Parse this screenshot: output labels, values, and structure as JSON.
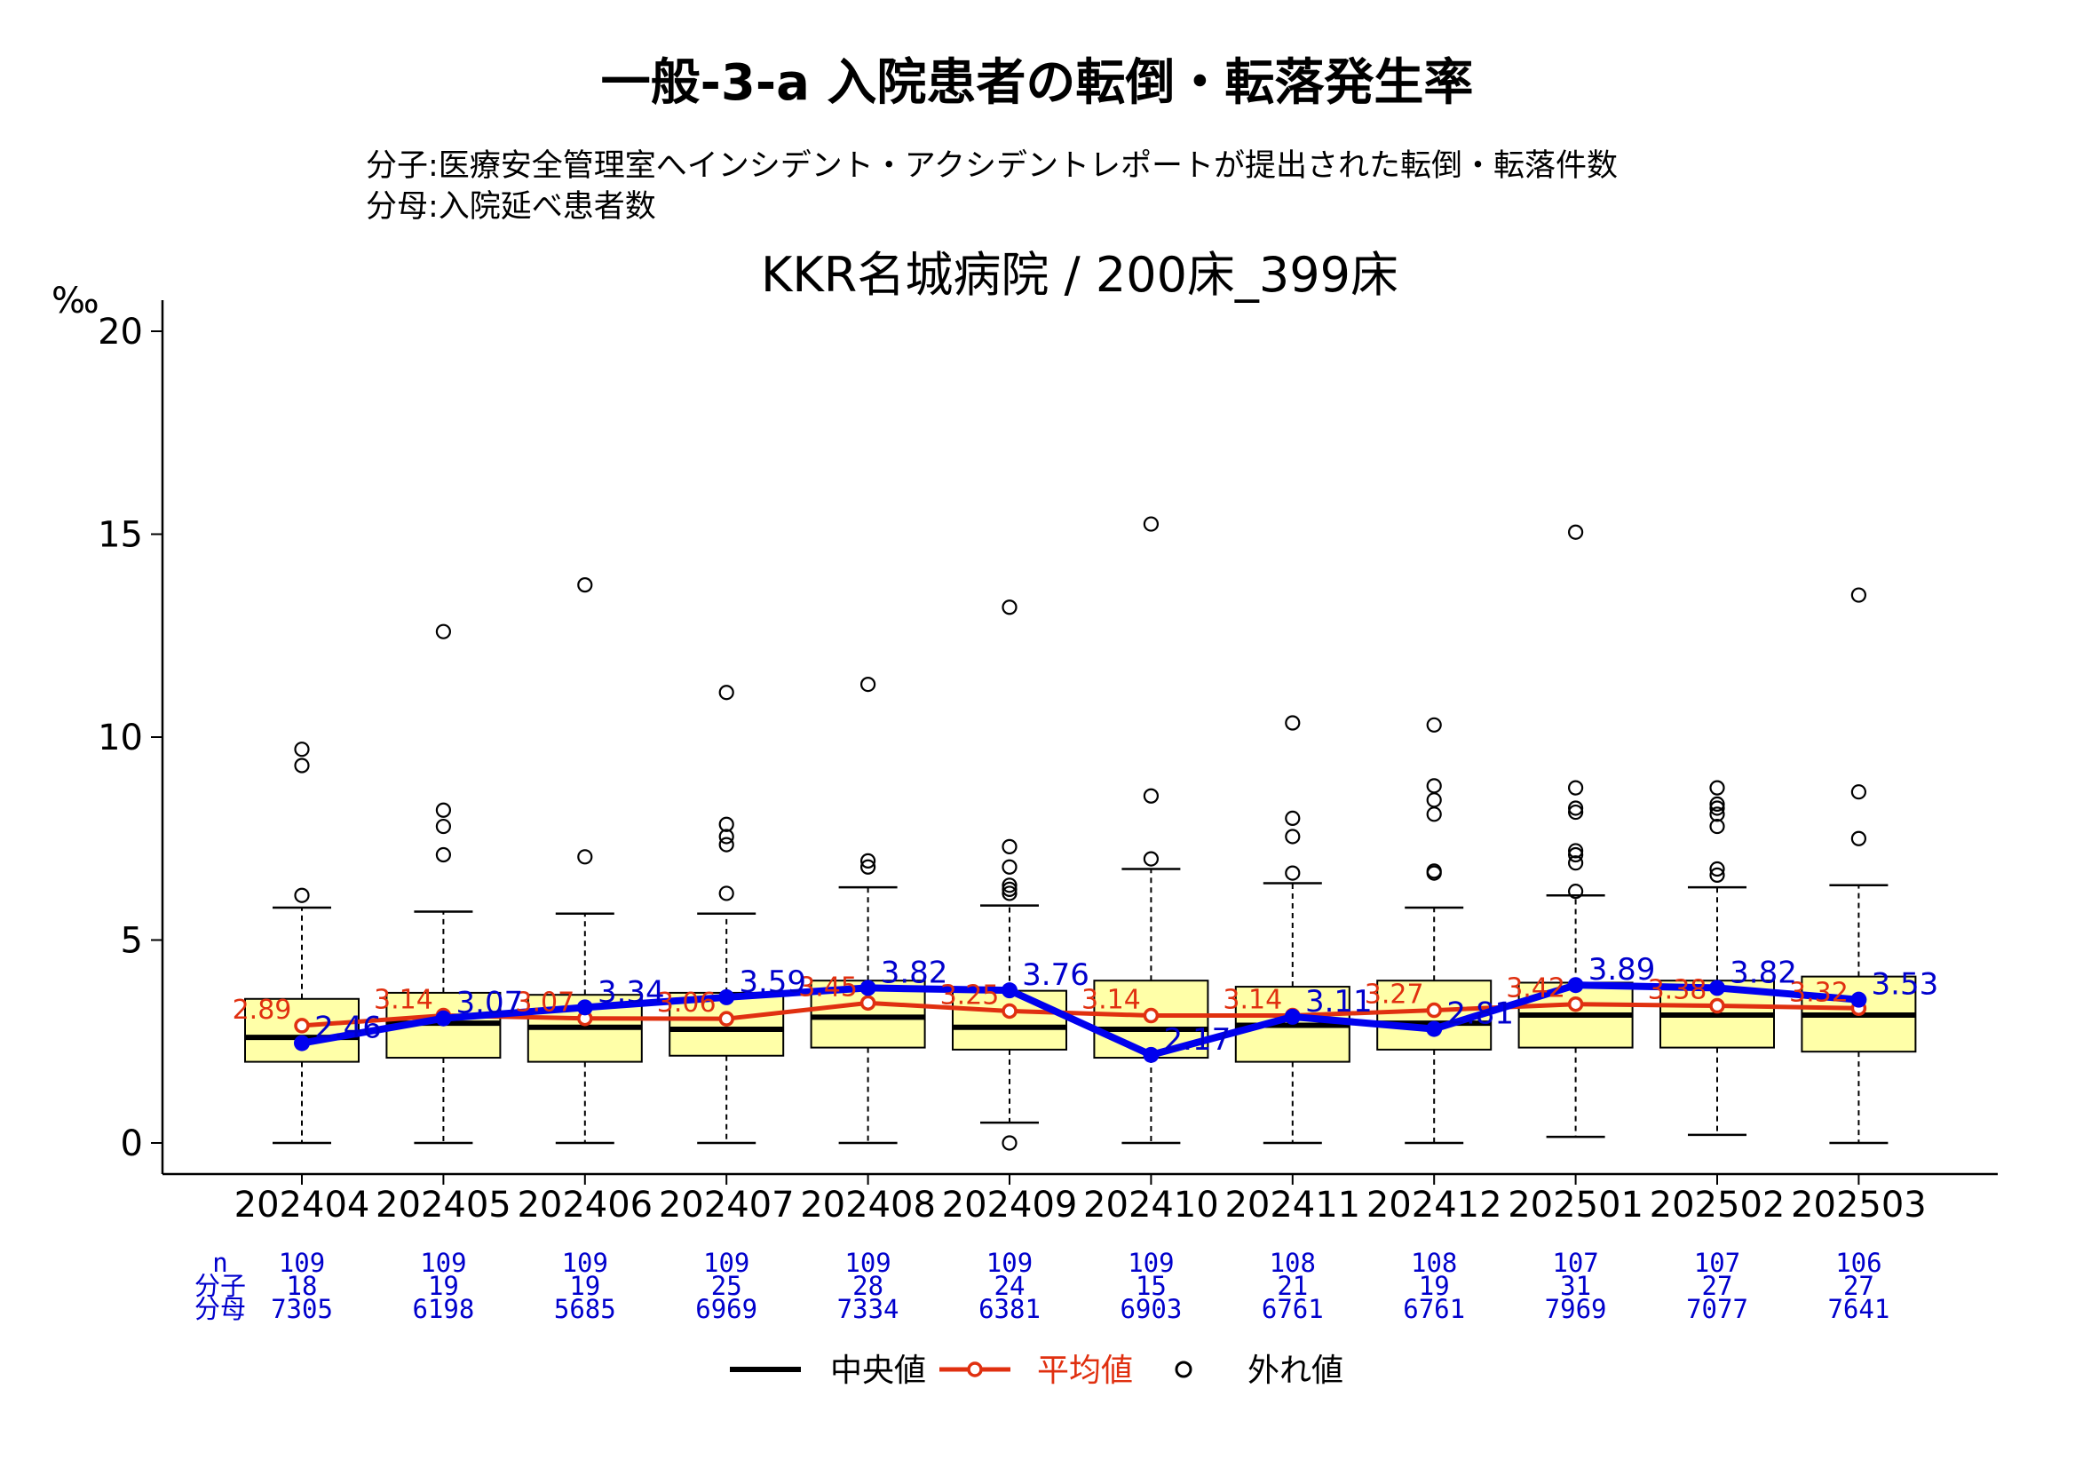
{
  "chart_data": {
    "type": "box",
    "title": "一般-3-a 入院患者の転倒・転落発生率",
    "subtitle_lines": [
      "分子:医療安全管理室へインシデント・アクシデントレポートが提出された転倒・転落件数",
      "分母:入院延べ患者数"
    ],
    "panel_title": "KKR名城病院 / 200床_399床",
    "ylabel": "‰",
    "ylim": [
      0,
      21
    ],
    "yticks": [
      0,
      5,
      10,
      15,
      20
    ],
    "categories": [
      "202404",
      "202405",
      "202406",
      "202407",
      "202408",
      "202409",
      "202410",
      "202411",
      "202412",
      "202501",
      "202502",
      "202503"
    ],
    "boxes": [
      {
        "low": 0,
        "q1": 2.0,
        "median": 2.6,
        "q3": 3.55,
        "high": 5.8,
        "outliers": [
          6.1,
          9.3,
          9.7
        ]
      },
      {
        "low": 0,
        "q1": 2.1,
        "median": 2.95,
        "q3": 3.7,
        "high": 5.7,
        "outliers": [
          7.1,
          7.8,
          8.2,
          12.6
        ]
      },
      {
        "low": 0,
        "q1": 2.0,
        "median": 2.85,
        "q3": 3.65,
        "high": 5.65,
        "outliers": [
          7.05,
          13.75
        ]
      },
      {
        "low": 0,
        "q1": 2.15,
        "median": 2.8,
        "q3": 3.7,
        "high": 5.65,
        "outliers": [
          6.15,
          7.35,
          7.55,
          7.85,
          11.1
        ]
      },
      {
        "low": 0,
        "q1": 2.35,
        "median": 3.1,
        "q3": 4.0,
        "high": 6.3,
        "outliers": [
          6.8,
          6.95,
          11.3
        ]
      },
      {
        "low": 0.5,
        "q1": 2.3,
        "median": 2.85,
        "q3": 3.75,
        "high": 5.85,
        "outliers": [
          0,
          6.15,
          6.25,
          6.35,
          6.8,
          7.3,
          13.2
        ]
      },
      {
        "low": 0,
        "q1": 2.1,
        "median": 2.8,
        "q3": 4.0,
        "high": 6.75,
        "outliers": [
          7.0,
          8.55,
          15.25
        ]
      },
      {
        "low": 0,
        "q1": 2.0,
        "median": 2.9,
        "q3": 3.85,
        "high": 6.4,
        "outliers": [
          6.65,
          7.55,
          8.0,
          10.35
        ]
      },
      {
        "low": 0,
        "q1": 2.3,
        "median": 2.95,
        "q3": 4.0,
        "high": 5.8,
        "outliers": [
          6.65,
          6.7,
          8.1,
          8.45,
          8.8,
          10.3
        ]
      },
      {
        "low": 0.15,
        "q1": 2.35,
        "median": 3.15,
        "q3": 3.95,
        "high": 6.1,
        "outliers": [
          6.2,
          6.9,
          7.1,
          7.2,
          8.15,
          8.25,
          8.75,
          15.05
        ]
      },
      {
        "low": 0.2,
        "q1": 2.35,
        "median": 3.15,
        "q3": 4.0,
        "high": 6.3,
        "outliers": [
          6.6,
          6.75,
          7.8,
          8.1,
          8.25,
          8.35,
          8.75
        ]
      },
      {
        "low": 0,
        "q1": 2.25,
        "median": 3.15,
        "q3": 4.1,
        "high": 6.35,
        "outliers": [
          7.5,
          8.65,
          13.5
        ]
      }
    ],
    "series": [
      {
        "name": "平均値",
        "color": "#e03010",
        "values": [
          2.89,
          3.14,
          3.07,
          3.06,
          3.45,
          3.25,
          3.14,
          3.14,
          3.27,
          3.42,
          3.38,
          3.32
        ],
        "labels": [
          "2.89",
          "3.14",
          "3.07",
          "3.06",
          "3.45",
          "3.25",
          "3.14",
          "3.14",
          "3.27",
          "3.42",
          "3.38",
          "3.32"
        ]
      },
      {
        "name": "KKR名城病院",
        "color": "#0000ee",
        "values": [
          2.46,
          3.07,
          3.34,
          3.59,
          3.82,
          3.76,
          2.17,
          3.11,
          2.81,
          3.89,
          3.82,
          3.53
        ],
        "labels": [
          "2.46",
          "3.07",
          "3.34",
          "3.59",
          "3.82",
          "3.76",
          "2.17",
          "3.11",
          "2.81",
          "3.89",
          "3.82",
          "3.53"
        ]
      }
    ],
    "table": {
      "row_labels": [
        "n",
        "分子",
        "分母"
      ],
      "n": [
        "109",
        "109",
        "109",
        "109",
        "109",
        "109",
        "109",
        "108",
        "108",
        "107",
        "107",
        "106"
      ],
      "numerator": [
        "18",
        "19",
        "19",
        "25",
        "28",
        "24",
        "15",
        "21",
        "19",
        "31",
        "27",
        "27"
      ],
      "denominator": [
        "7305",
        "6198",
        "5685",
        "6969",
        "7334",
        "6381",
        "6903",
        "6761",
        "6761",
        "7969",
        "7077",
        "7641"
      ]
    },
    "legend": [
      "中央値",
      "平均値",
      "外れ値"
    ],
    "legend_position": "bottom",
    "colors": {
      "box_fill": "#ffffa8",
      "mean": "#e03010",
      "hospital": "#0000ee",
      "table_text": "#0000cc"
    }
  }
}
